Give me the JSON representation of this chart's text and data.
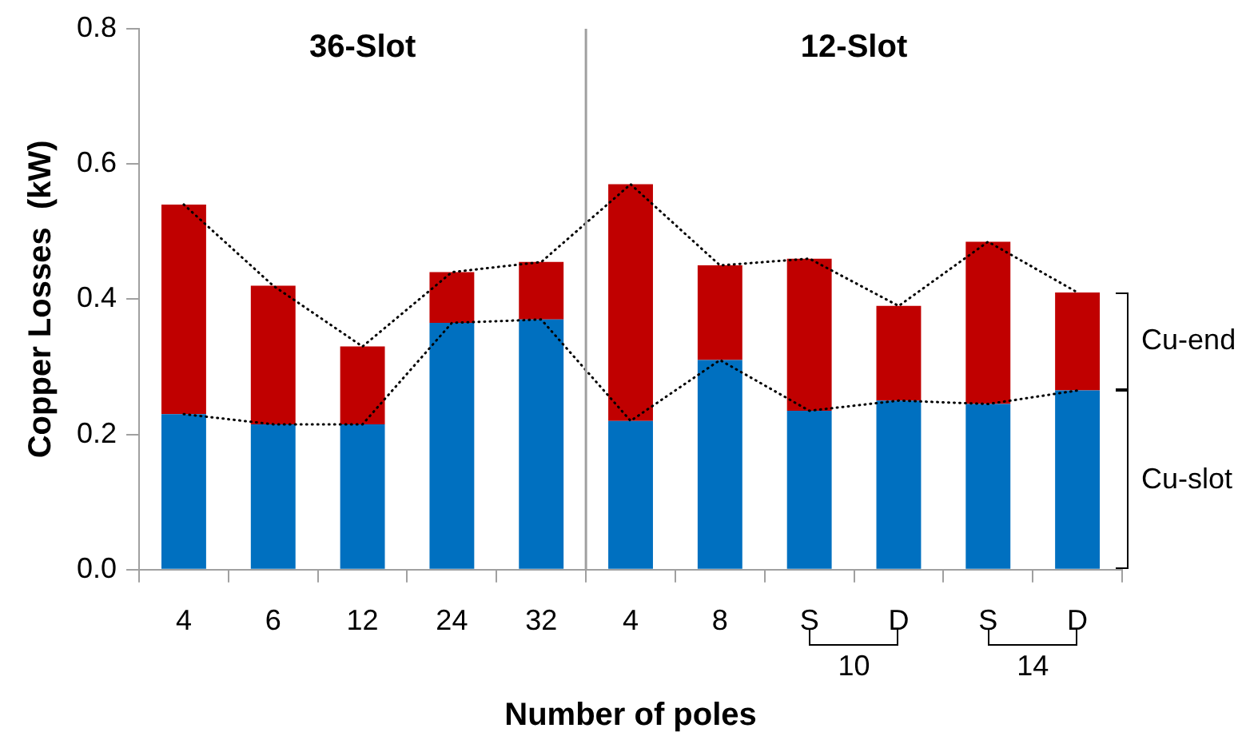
{
  "chart_data": {
    "type": "bar",
    "stacked": true,
    "ylabel": "Copper Losses  (kW)",
    "xlabel": "Number of poles",
    "categories": [
      "4",
      "6",
      "12",
      "24",
      "32",
      "4",
      "8",
      "S",
      "D",
      "S",
      "D"
    ],
    "ylim": [
      0,
      0.8
    ],
    "yticks": [
      {
        "value": 0,
        "label": "0.0"
      },
      {
        "value": 0.2,
        "label": "0.2"
      },
      {
        "value": 0.4,
        "label": "0.4"
      },
      {
        "value": 0.6,
        "label": "0.6"
      },
      {
        "value": 0.8,
        "label": "0.8"
      }
    ],
    "grid": false,
    "legend": false,
    "series": [
      {
        "name": "Cu-slot",
        "color": "#0070c0",
        "values": [
          0.23,
          0.215,
          0.215,
          0.365,
          0.37,
          0.22,
          0.31,
          0.235,
          0.25,
          0.245,
          0.265
        ]
      },
      {
        "name": "Cu-end",
        "color": "#c00000",
        "values": [
          0.31,
          0.205,
          0.115,
          0.075,
          0.085,
          0.35,
          0.14,
          0.225,
          0.14,
          0.24,
          0.145
        ]
      },
      {
        "type": "line",
        "color": "#000000",
        "line_style": "dotted",
        "marker": "none",
        "values": [
          0.54,
          0.42,
          0.33,
          0.44,
          0.455,
          0.57,
          0.45,
          0.46,
          0.39,
          0.485,
          0.41
        ]
      },
      {
        "type": "line",
        "color": "#000000",
        "line_style": "dotted",
        "marker": "none",
        "values": [
          0.23,
          0.215,
          0.215,
          0.365,
          0.37,
          0.22,
          0.31,
          0.235,
          0.25,
          0.245,
          0.265
        ]
      }
    ],
    "annotations": [
      "36-Slot",
      "12-Slot",
      "10",
      "14"
    ]
  }
}
